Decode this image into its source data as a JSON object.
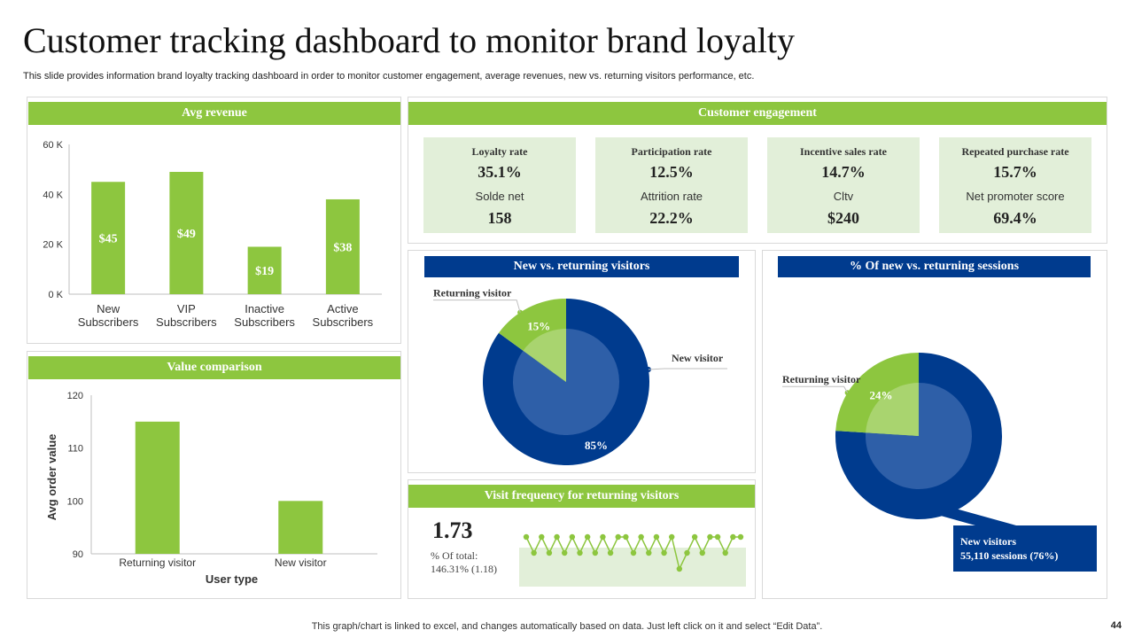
{
  "page": {
    "title": "Customer tracking dashboard to monitor brand loyalty",
    "subtitle": "This slide provides information brand loyalty tracking dashboard in order to monitor customer engagement, average revenues, new vs. returning visitors performance, etc.",
    "footer": "This graph/chart is linked to excel, and changes automatically based on data. Just left click on it and select “Edit Data”.",
    "page_number": "44"
  },
  "colors": {
    "green": "#8dc63f",
    "light_green": "#e2efd9",
    "navy": "#003b8e",
    "mid_blue": "#2e5fa8"
  },
  "panels": {
    "avg_revenue": "Avg revenue",
    "customer_engagement": "Customer engagement",
    "value_comparison": "Value comparison",
    "new_vs_returning": "New vs. returning visitors",
    "sessions": "% Of new vs. returning sessions",
    "visit_frequency": "Visit frequency for returning visitors"
  },
  "engagement": [
    {
      "label": "Loyalty rate",
      "value": "35.1%",
      "label2": "Solde net",
      "value2": "158"
    },
    {
      "label": "Participation rate",
      "value": "12.5%",
      "label2": "Attrition rate",
      "value2": "22.2%"
    },
    {
      "label": "Incentive sales rate",
      "value": "14.7%",
      "label2": "Cltv",
      "value2": "$240"
    },
    {
      "label": "Repeated purchase rate",
      "value": "15.7%",
      "label2": "Net promoter score",
      "value2": "69.4%"
    }
  ],
  "visit_frequency": {
    "value": "1.73",
    "pct_label": "% Of total:",
    "pct_value": "146.31% (1.18)"
  },
  "sessions_callout": {
    "line1": "New visitors",
    "line2": "55,110 sessions (76%)"
  },
  "chart_data": [
    {
      "type": "bar",
      "title": "Avg revenue",
      "categories": [
        [
          "New",
          "Subscribers"
        ],
        [
          "VIP",
          "Subscribers"
        ],
        [
          "Inactive",
          "Subscribers"
        ],
        [
          "Active",
          "Subscribers"
        ]
      ],
      "values": [
        45,
        49,
        19,
        38
      ],
      "data_labels": [
        "$45",
        "$49",
        "$19",
        "$38"
      ],
      "yticks": [
        "0 K",
        "20 K",
        "40 K",
        "60 K"
      ],
      "ylim": [
        0,
        60
      ]
    },
    {
      "type": "bar",
      "title": "Value comparison",
      "categories": [
        "Returning visitor",
        "New visitor"
      ],
      "values": [
        115,
        100
      ],
      "yticks": [
        "90",
        "100",
        "110",
        "120"
      ],
      "ylim": [
        90,
        120
      ],
      "xlabel": "User type",
      "ylabel": "Avg order value"
    },
    {
      "type": "pie",
      "title": "New vs. returning visitors",
      "labels": [
        "Returning visitor",
        "New visitor"
      ],
      "values": [
        15,
        85
      ],
      "data_labels": [
        "15%",
        "85%"
      ]
    },
    {
      "type": "pie",
      "title": "% Of new vs. returning sessions",
      "labels": [
        "Returning visitor",
        "New visitors"
      ],
      "values": [
        24,
        76
      ],
      "data_labels": [
        "24%",
        "76%"
      ]
    },
    {
      "type": "line",
      "title": "Visit frequency for returning visitors",
      "values": [
        2,
        1,
        2,
        1,
        2,
        1,
        2,
        1,
        2,
        1,
        2,
        1,
        2,
        2,
        1,
        2,
        1,
        2,
        1,
        2,
        0,
        1,
        2,
        1,
        2,
        2,
        1,
        2,
        2
      ]
    }
  ]
}
